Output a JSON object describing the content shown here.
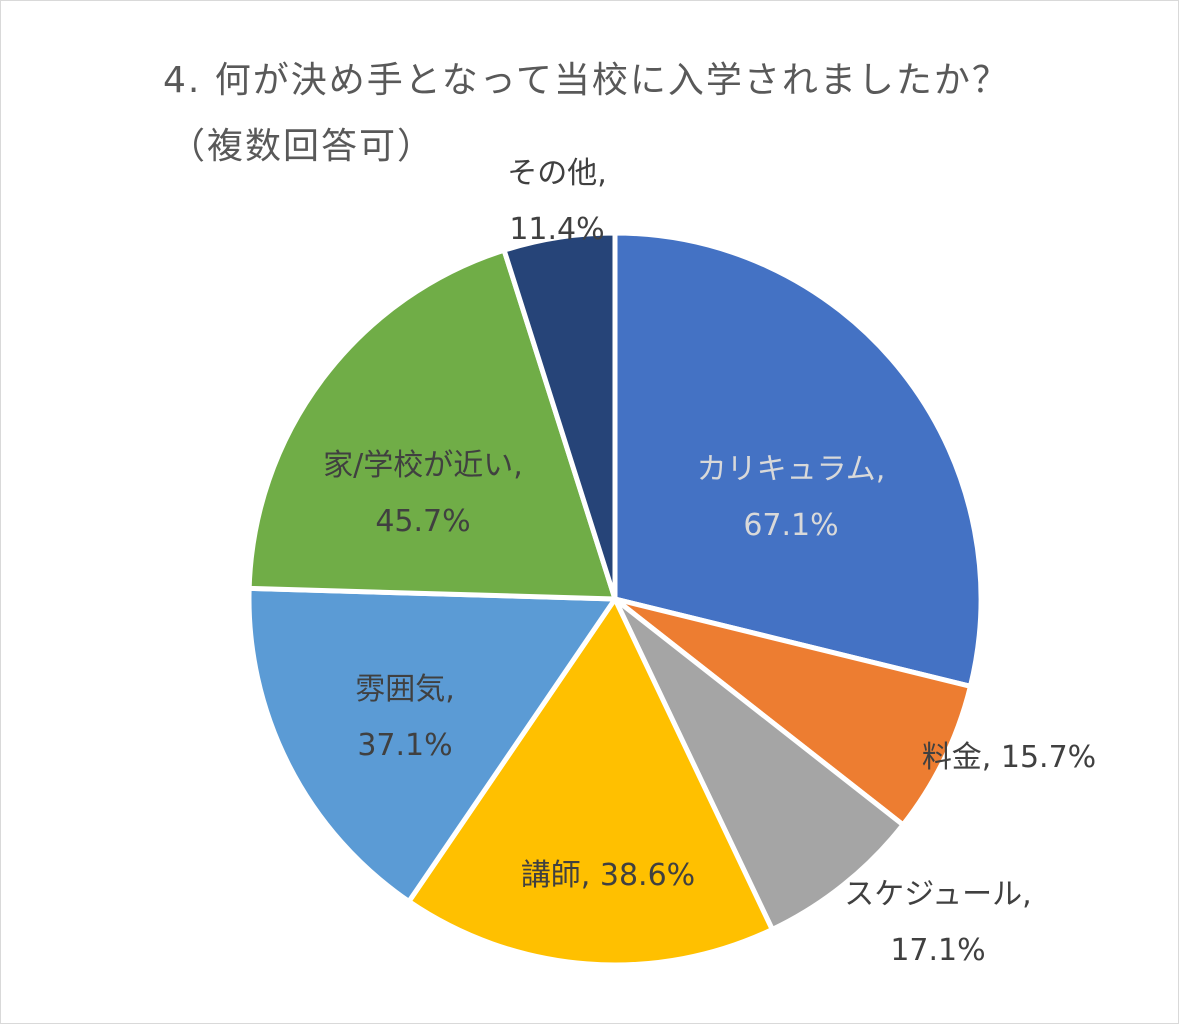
{
  "chart_data": {
    "type": "pie",
    "title": "4. 何が決め手となって当校に入学されましたか？",
    "subtitle": "（複数回答可）",
    "slices": [
      {
        "category": "カリキュラム",
        "value": 67.1,
        "value_label": "67.1%",
        "color": "#4472C4"
      },
      {
        "category": "料金",
        "value": 15.7,
        "value_label": "15.7%",
        "color": "#ED7D31"
      },
      {
        "category": "スケジュール",
        "value": 17.1,
        "value_label": "17.1%",
        "color": "#A5A5A5"
      },
      {
        "category": "講師",
        "value": 38.6,
        "value_label": "38.6%",
        "color": "#FFC000"
      },
      {
        "category": "雰囲気",
        "value": 37.1,
        "value_label": "37.1%",
        "color": "#5B9BD5"
      },
      {
        "category": "家/学校が近い",
        "value": 45.7,
        "value_label": "45.7%",
        "color": "#70AD47"
      },
      {
        "category": "その他",
        "value": 11.4,
        "value_label": "11.4%",
        "color": "#264478"
      }
    ],
    "legend": "none",
    "start_angle": "12 o'clock, clockwise"
  }
}
